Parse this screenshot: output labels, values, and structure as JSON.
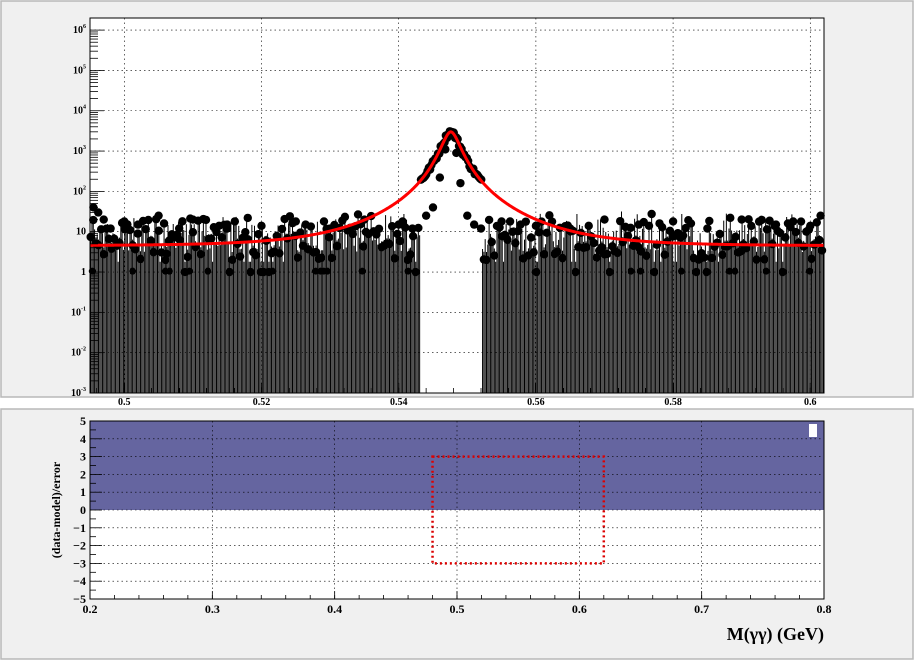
{
  "chart_data": [
    {
      "type": "scatter",
      "panel": "top",
      "xlim": [
        0.495,
        0.602
      ],
      "ylim_log10": [
        -3,
        6.3
      ],
      "yscale": "log",
      "grid": true,
      "x_ticks": [
        "0.5",
        "0.52",
        "0.54",
        "0.56",
        "0.58",
        "0.6"
      ],
      "y_ticks": [
        {
          "base": "10",
          "exp": "6"
        },
        {
          "base": "10",
          "exp": "5"
        },
        {
          "base": "10",
          "exp": "4"
        },
        {
          "base": "10",
          "exp": "3"
        },
        {
          "base": "10",
          "exp": "2"
        },
        {
          "base": "",
          "exp": "",
          "plain": "10"
        },
        {
          "base": "",
          "exp": "",
          "plain": "1"
        },
        {
          "base": "10",
          "exp": "-1"
        },
        {
          "base": "10",
          "exp": "-2"
        },
        {
          "base": "10",
          "exp": "-3"
        }
      ],
      "series": [
        {
          "kind": "data-points",
          "color": "#000000",
          "x": [
            0.4955,
            0.4962,
            0.497,
            0.498,
            0.5,
            0.502,
            0.505,
            0.506,
            0.508,
            0.51,
            0.515,
            0.518,
            0.52,
            0.525,
            0.53,
            0.535,
            0.54,
            0.542,
            0.544,
            0.545,
            0.546,
            0.5468,
            0.5472,
            0.5476,
            0.548,
            0.5484,
            0.549,
            0.55,
            0.551,
            0.552,
            0.555,
            0.56,
            0.565,
            0.57,
            0.575,
            0.58,
            0.585,
            0.59,
            0.595,
            0.6,
            0.6015
          ],
          "y": [
            40,
            30,
            20,
            12,
            18,
            15,
            25,
            2,
            12,
            20,
            15,
            22,
            14,
            18,
            12,
            20,
            15,
            12,
            25,
            40,
            220,
            1100,
            2600,
            3000,
            2400,
            900,
            160,
            25,
            15,
            12,
            18,
            14,
            12,
            20,
            15,
            18,
            12,
            20,
            15,
            14,
            25
          ]
        },
        {
          "kind": "fit",
          "color": "#ff0000",
          "background": 4.5,
          "peak_x": 0.5476,
          "peak_height": 3000,
          "peak_width": 0.0009
        }
      ]
    },
    {
      "type": "area",
      "panel": "bottom",
      "xlim": [
        0.2,
        0.8
      ],
      "ylim": [
        -5,
        5
      ],
      "ylabel": "(data-model)/error",
      "xlabel": "M(γγ) (GeV)",
      "grid": true,
      "x_ticks": [
        "0.2",
        "0.3",
        "0.4",
        "0.5",
        "0.6",
        "0.7",
        "0.8"
      ],
      "y_ticks": [
        "5",
        "4",
        "3",
        "2",
        "1",
        "0",
        "−1",
        "−2",
        "−3",
        "−4",
        "−5"
      ],
      "fill_color": "#6565a0",
      "fill_range_y": [
        0,
        5
      ],
      "box": {
        "x": [
          0.48,
          0.62
        ],
        "y": [
          -3,
          3
        ],
        "color": "#dd0000",
        "style": "dotted"
      }
    }
  ]
}
